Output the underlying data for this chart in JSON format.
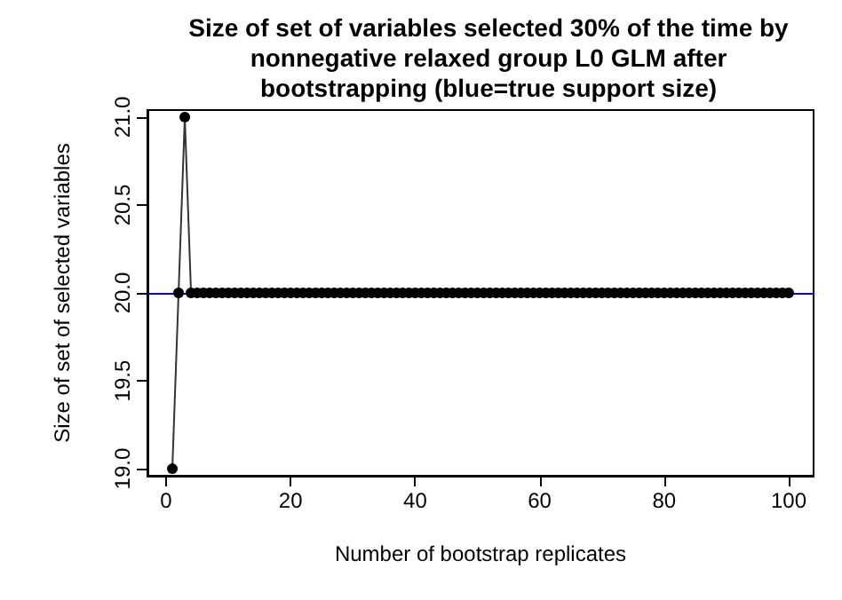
{
  "chart_data": {
    "type": "line",
    "title": "Size of set of variables selected 30% of the time by\nnonnegative relaxed group L0 GLM after\nbootstrapping (blue=true support size)",
    "xlabel": "Number of bootstrap replicates",
    "ylabel": "Size of set of selected variables",
    "x": [
      1,
      2,
      3,
      4,
      5,
      6,
      7,
      8,
      9,
      10,
      11,
      12,
      13,
      14,
      15,
      16,
      17,
      18,
      19,
      20,
      21,
      22,
      23,
      24,
      25,
      26,
      27,
      28,
      29,
      30,
      31,
      32,
      33,
      34,
      35,
      36,
      37,
      38,
      39,
      40,
      41,
      42,
      43,
      44,
      45,
      46,
      47,
      48,
      49,
      50,
      51,
      52,
      53,
      54,
      55,
      56,
      57,
      58,
      59,
      60,
      61,
      62,
      63,
      64,
      65,
      66,
      67,
      68,
      69,
      70,
      71,
      72,
      73,
      74,
      75,
      76,
      77,
      78,
      79,
      80,
      81,
      82,
      83,
      84,
      85,
      86,
      87,
      88,
      89,
      90,
      91,
      92,
      93,
      94,
      95,
      96,
      97,
      98,
      99,
      100
    ],
    "series": [
      {
        "color": "#000000",
        "values": [
          19,
          20,
          21,
          20,
          20,
          20,
          20,
          20,
          20,
          20,
          20,
          20,
          20,
          20,
          20,
          20,
          20,
          20,
          20,
          20,
          20,
          20,
          20,
          20,
          20,
          20,
          20,
          20,
          20,
          20,
          20,
          20,
          20,
          20,
          20,
          20,
          20,
          20,
          20,
          20,
          20,
          20,
          20,
          20,
          20,
          20,
          20,
          20,
          20,
          20,
          20,
          20,
          20,
          20,
          20,
          20,
          20,
          20,
          20,
          20,
          20,
          20,
          20,
          20,
          20,
          20,
          20,
          20,
          20,
          20,
          20,
          20,
          20,
          20,
          20,
          20,
          20,
          20,
          20,
          20,
          20,
          20,
          20,
          20,
          20,
          20,
          20,
          20,
          20,
          20,
          20,
          20,
          20,
          20,
          20,
          20,
          20,
          20,
          20,
          20
        ]
      }
    ],
    "xlim": [
      -3,
      104
    ],
    "xticks": [
      0,
      20,
      40,
      60,
      80,
      100
    ],
    "ylim": [
      18.96,
      21.04
    ],
    "yticks": [
      {
        "value": 19,
        "label": "19.0"
      },
      {
        "value": 19.5,
        "label": "19.5"
      },
      {
        "value": 20,
        "label": "20.0"
      },
      {
        "value": 20.5,
        "label": "20.5"
      },
      {
        "value": 21,
        "label": "21.0"
      }
    ],
    "ref_lines": [
      {
        "axis": "y",
        "value": 20,
        "color": "#0000ff"
      }
    ],
    "grid": false,
    "marker": "circle",
    "line_style": "solid"
  }
}
